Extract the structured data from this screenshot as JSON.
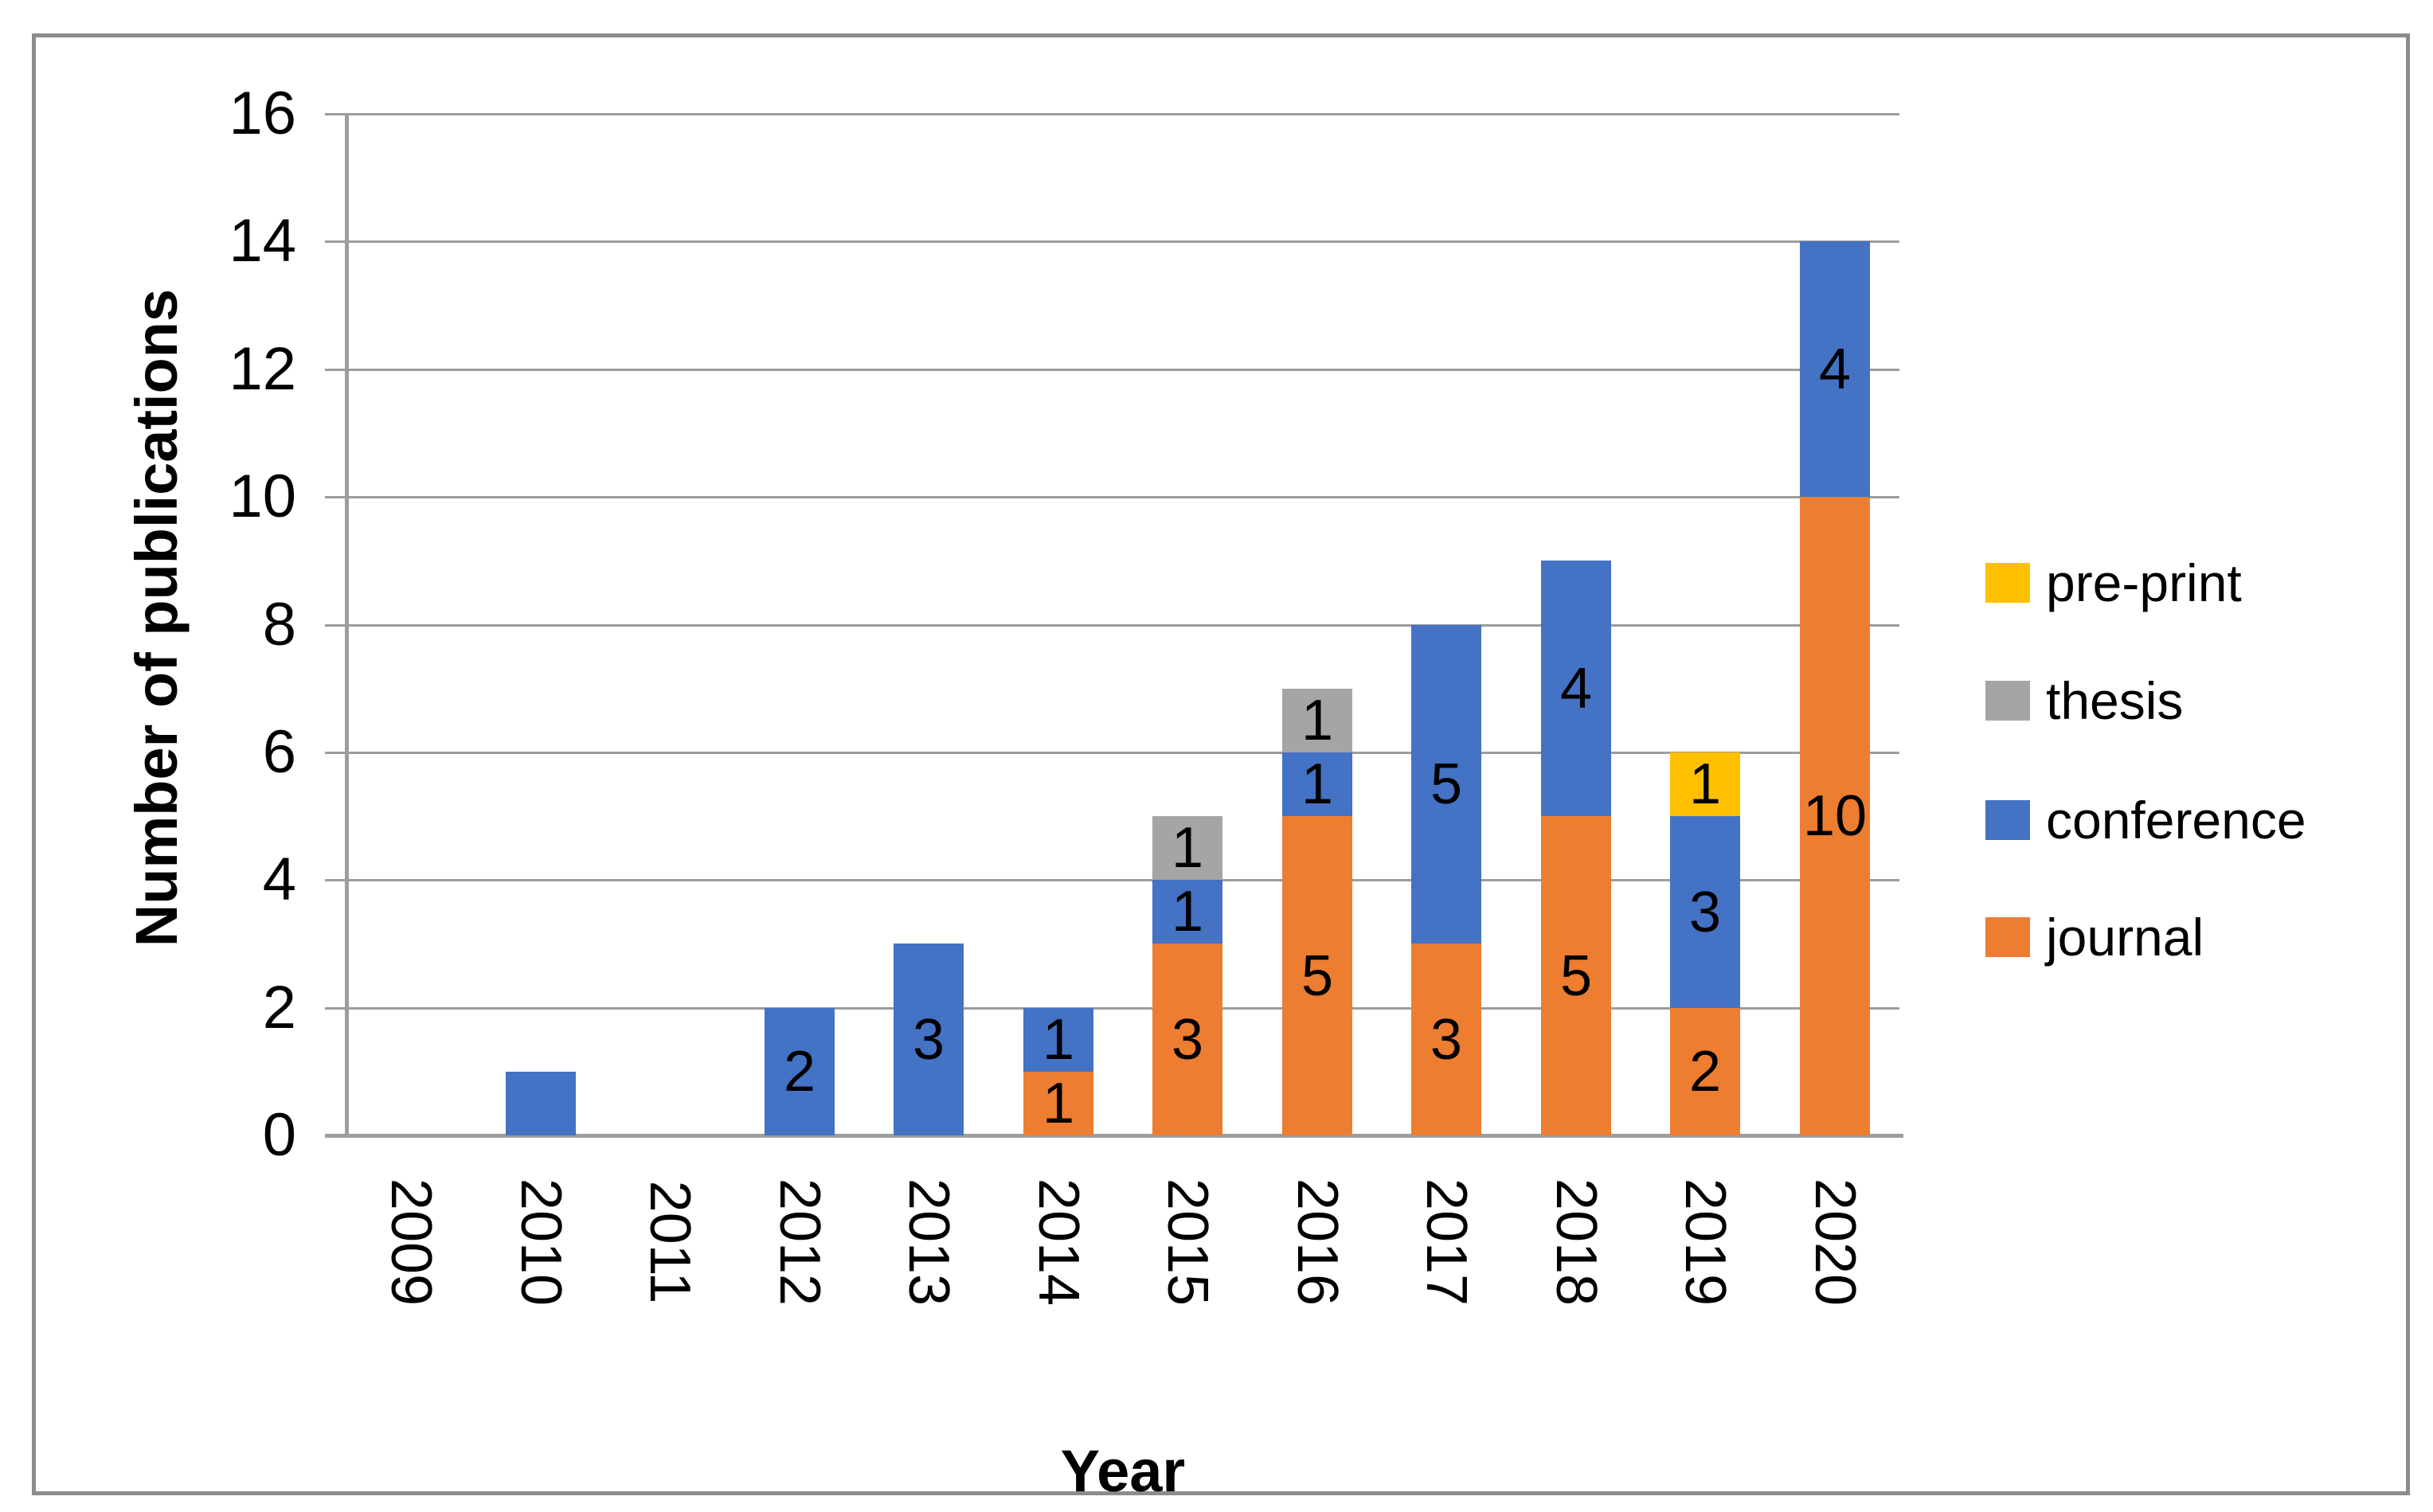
{
  "chart_data": {
    "type": "bar",
    "stacked": true,
    "title": "",
    "xlabel": "Year",
    "ylabel": "Number of publications",
    "ylim": [
      0,
      16
    ],
    "ytick_step": 2,
    "yticks": [
      0,
      2,
      4,
      6,
      8,
      10,
      12,
      14,
      16
    ],
    "grid": "horizontal",
    "legend_position": "right",
    "categories": [
      "2009",
      "2010",
      "2011",
      "2012",
      "2013",
      "2014",
      "2015",
      "2016",
      "2017",
      "2018",
      "2019",
      "2020"
    ],
    "series": [
      {
        "name": "journal",
        "color": "#ED7D31",
        "values": [
          0,
          0,
          0,
          0,
          0,
          1,
          3,
          5,
          3,
          5,
          2,
          10
        ],
        "labels": [
          "",
          "",
          "",
          "",
          "",
          "1",
          "3",
          "5",
          "3",
          "5",
          "2",
          "10"
        ]
      },
      {
        "name": "conference",
        "color": "#4472C4",
        "values": [
          0,
          1,
          0,
          2,
          3,
          1,
          1,
          1,
          5,
          4,
          3,
          4
        ],
        "labels": [
          "",
          "",
          "",
          "2",
          "3",
          "1",
          "1",
          "1",
          "5",
          "4",
          "3",
          "4"
        ]
      },
      {
        "name": "thesis",
        "color": "#A5A5A5",
        "values": [
          0,
          0,
          0,
          0,
          0,
          0,
          1,
          1,
          0,
          0,
          0,
          0
        ],
        "labels": [
          "",
          "",
          "",
          "",
          "",
          "",
          "1",
          "1",
          "",
          "",
          "",
          ""
        ]
      },
      {
        "name": "pre-print",
        "color": "#FFC000",
        "values": [
          0,
          0,
          0,
          0,
          0,
          0,
          0,
          0,
          0,
          0,
          1,
          0
        ],
        "labels": [
          "",
          "",
          "",
          "",
          "",
          "",
          "",
          "",
          "",
          "",
          "1",
          ""
        ]
      }
    ],
    "legend": [
      {
        "label": "pre-print",
        "color": "#FFC000"
      },
      {
        "label": "thesis",
        "color": "#A5A5A5"
      },
      {
        "label": "conference",
        "color": "#4472C4"
      },
      {
        "label": "journal",
        "color": "#ED7D31"
      }
    ]
  },
  "colors": {
    "gridline": "#9D9D9D",
    "axis_line": "#9D9D9D",
    "outer_border": "#8C8C8C",
    "label_text": "#000000",
    "background": "#FFFFFF"
  }
}
